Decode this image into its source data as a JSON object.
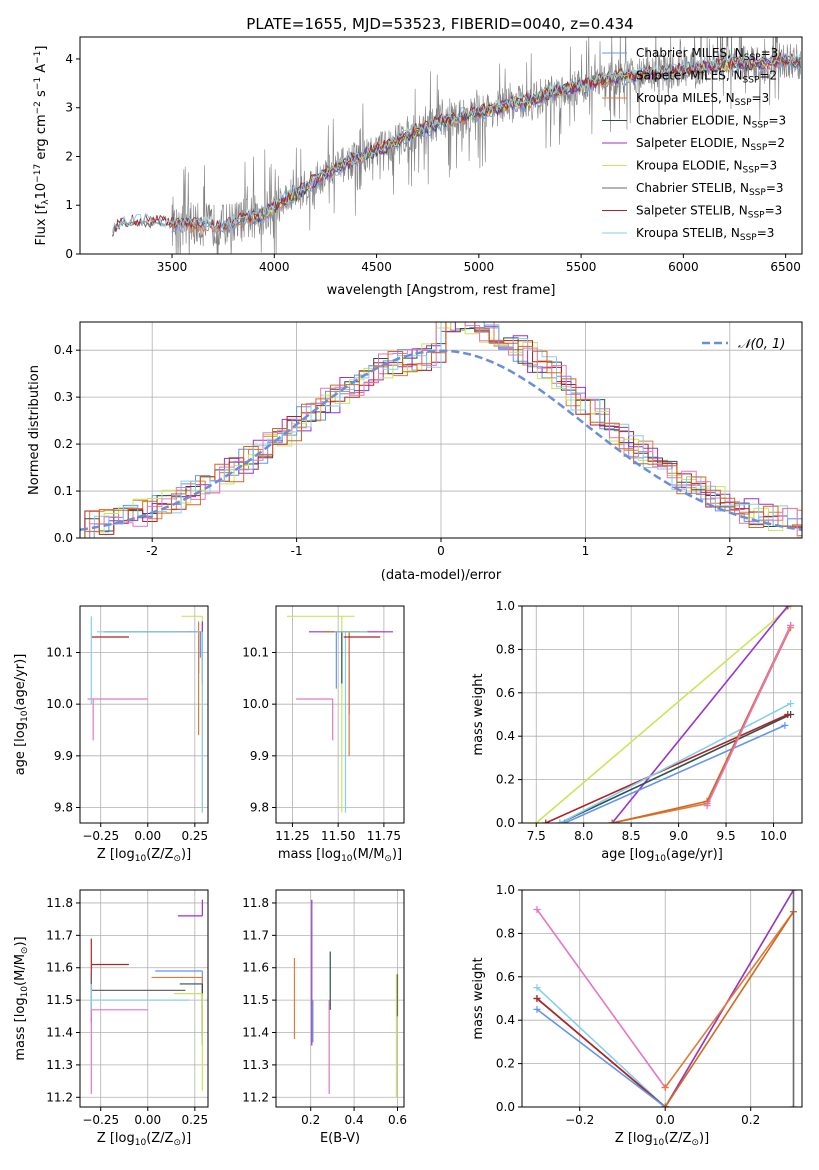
{
  "figure": {
    "title": "PLATE=1655, MJD=53523, FIBERID=0040, z=0.434"
  },
  "chart_data": [
    {
      "id": "spectrum",
      "type": "line",
      "xlabel": "wavelength [Angstrom, rest frame]",
      "ylabel": "Flux [f",
      "ylabel_sub": "λ",
      "ylabel_rest": "10",
      "ylabel_exp1": "−17",
      "ylabel_mid": " erg cm",
      "ylabel_exp2": "−2",
      "ylabel_mid2": " s",
      "ylabel_exp3": "−1",
      "ylabel_end": " A",
      "ylabel_exp4": "−1",
      "ylabel_close": "]",
      "xlim": [
        3050,
        6580
      ],
      "ylim": [
        0,
        4.45
      ],
      "xticks": [
        3500,
        4000,
        4500,
        5000,
        5500,
        6000,
        6500
      ],
      "yticks": [
        0,
        1,
        2,
        3,
        4
      ],
      "grid": false,
      "legend_position": "top-right",
      "data_x_range": [
        3210,
        6575
      ],
      "continuum": [
        [
          3210,
          0.45
        ],
        [
          3250,
          0.62
        ],
        [
          3350,
          0.65
        ],
        [
          3450,
          0.62
        ],
        [
          3550,
          0.6
        ],
        [
          3650,
          0.6
        ],
        [
          3750,
          0.58
        ],
        [
          3850,
          0.7
        ],
        [
          3950,
          0.82
        ],
        [
          4050,
          1.1
        ],
        [
          4150,
          1.35
        ],
        [
          4250,
          1.65
        ],
        [
          4350,
          1.85
        ],
        [
          4450,
          2.05
        ],
        [
          4550,
          2.2
        ],
        [
          4650,
          2.45
        ],
        [
          4750,
          2.6
        ],
        [
          4850,
          2.75
        ],
        [
          4950,
          2.85
        ],
        [
          5050,
          2.95
        ],
        [
          5150,
          3.05
        ],
        [
          5250,
          3.15
        ],
        [
          5350,
          3.3
        ],
        [
          5450,
          3.4
        ],
        [
          5550,
          3.5
        ],
        [
          5650,
          3.6
        ],
        [
          5750,
          3.65
        ],
        [
          5850,
          3.7
        ],
        [
          5950,
          3.75
        ],
        [
          6050,
          3.8
        ],
        [
          6150,
          3.85
        ],
        [
          6250,
          3.9
        ],
        [
          6350,
          3.9
        ],
        [
          6450,
          3.95
        ],
        [
          6575,
          3.95
        ]
      ],
      "series": [
        {
          "name": "Chabrier MILES, N",
          "sub": "SSP",
          "suffix": "=3",
          "color": "#6495ed"
        },
        {
          "name": "Salpeter MILES, N",
          "sub": "SSP",
          "suffix": "=2",
          "color": "#a9a9a9"
        },
        {
          "name": "Kroupa MILES, N",
          "sub": "SSP",
          "suffix": "=3",
          "color": "#e07b39"
        },
        {
          "name": "Chabrier ELODIE, N",
          "sub": "SSP",
          "suffix": "=3",
          "color": "#2f4f4f"
        },
        {
          "name": "Salpeter ELODIE, N",
          "sub": "SSP",
          "suffix": "=2",
          "color": "#9932cc"
        },
        {
          "name": "Kroupa ELODIE, N",
          "sub": "SSP",
          "suffix": "=3",
          "color": "#c8e65a"
        },
        {
          "name": "Chabrier STELIB, N",
          "sub": "SSP",
          "suffix": "=3",
          "color": "#696969"
        },
        {
          "name": "Salpeter STELIB, N",
          "sub": "SSP",
          "suffix": "=3",
          "color": "#b22222"
        },
        {
          "name": "Kroupa STELIB, N",
          "sub": "SSP",
          "suffix": "=3",
          "color": "#87ceeb"
        }
      ]
    },
    {
      "id": "residuals",
      "type": "histogram",
      "xlabel": "(data-model)/error",
      "ylabel": "Normed distribution",
      "xlim": [
        -2.5,
        2.5
      ],
      "ylim": [
        0,
        0.46
      ],
      "xticks": [
        -2,
        -1,
        0,
        1,
        2
      ],
      "yticks": [
        0.0,
        0.1,
        0.2,
        0.3,
        0.4
      ],
      "grid": true,
      "legend_position": "top-right",
      "legend_label": "𝒩(0, 1)",
      "gaussian_color": "#6a8fd8",
      "bin_width": 0.1,
      "colors": [
        "#6495ed",
        "#e07b39",
        "#2f4f4f",
        "#9932cc",
        "#c8e65a",
        "#b22222",
        "#87ceeb",
        "#e377c2",
        "#d2691e"
      ]
    },
    {
      "id": "age-vs-z",
      "type": "errorbar",
      "xlabel": "Z [log",
      "xlabel_sub": "10",
      "xlabel_rest": "(Z/Z",
      "xlabel_sub2": "⊙",
      "xlabel_end": ")]",
      "ylabel": "age  [log",
      "ylabel_sub": "10",
      "ylabel_rest": "(age/yr)]",
      "xlim": [
        -0.36,
        0.32
      ],
      "ylim": [
        9.77,
        10.19
      ],
      "xticks": [
        -0.25,
        0.0,
        0.25
      ],
      "xticklabels": [
        "−0.25",
        "0.00",
        "0.25"
      ],
      "yticks": [
        9.8,
        9.9,
        10.0,
        10.1
      ],
      "grid": true,
      "points": [
        {
          "x": 0.29,
          "y": 10.17,
          "xerr": [
            0.11,
            0.0
          ],
          "yerr": [
            0.38,
            0.0
          ],
          "color": "#c8e65a"
        },
        {
          "x": 0.29,
          "y": 10.14,
          "xerr": [
            0.08,
            0.0
          ],
          "yerr": [
            0.1,
            0.02
          ],
          "color": "#9932cc"
        },
        {
          "x": 0.27,
          "y": 10.14,
          "xerr": [
            0.5,
            0.0
          ],
          "yerr": [
            0.08,
            0.0
          ],
          "color": "#2f4f4f"
        },
        {
          "x": 0.27,
          "y": 10.14,
          "xerr": [
            0.1,
            0.02
          ],
          "yerr": [
            0.2,
            0.02
          ],
          "color": "#e07b39"
        },
        {
          "x": 0.29,
          "y": 10.14,
          "xerr": [
            0.56,
            0.0
          ],
          "yerr": [
            0.35,
            0.0
          ],
          "color": "#87ceeb"
        },
        {
          "x": -0.2,
          "y": 10.13,
          "xerr": [
            0.1,
            0.1
          ],
          "yerr": [
            0.0,
            0.0
          ],
          "color": "#b22222"
        },
        {
          "x": -0.29,
          "y": 10.01,
          "xerr": [
            0.03,
            0.29
          ],
          "yerr": [
            0.08,
            0.0
          ],
          "color": "#e377c2"
        },
        {
          "x": -0.3,
          "y": 10.1,
          "xerr": [
            0.0,
            0.0
          ],
          "yerr": [
            0.1,
            0.07
          ],
          "color": "#87ceeb"
        },
        {
          "x": 0.28,
          "y": 10.14,
          "xerr": [
            0.0,
            0.0
          ],
          "yerr": [
            0.05,
            0.0
          ],
          "color": "#6495ed"
        }
      ]
    },
    {
      "id": "age-vs-mass",
      "type": "errorbar",
      "xlabel": "mass [log",
      "xlabel_sub": "10",
      "xlabel_rest": "(M/M",
      "xlabel_sub2": "⊙",
      "xlabel_end": ")]",
      "xlim": [
        11.16,
        11.86
      ],
      "ylim": [
        9.77,
        10.19
      ],
      "xticks": [
        11.25,
        11.5,
        11.75
      ],
      "xticklabels": [
        "11.25",
        "11.50",
        "11.75"
      ],
      "yticks": [
        9.8,
        9.9,
        10.0,
        10.1
      ],
      "grid": true,
      "points": [
        {
          "x": 11.52,
          "y": 10.17,
          "xerr": [
            0.3,
            0.07
          ],
          "yerr": [
            0.38,
            0.0
          ],
          "color": "#c8e65a"
        },
        {
          "x": 11.56,
          "y": 10.14,
          "xerr": [
            0.22,
            0.24
          ],
          "yerr": [
            0.16,
            0.0
          ],
          "color": "#9932cc"
        },
        {
          "x": 11.52,
          "y": 10.14,
          "xerr": [
            0.1,
            0.1
          ],
          "yerr": [
            0.1,
            0.0
          ],
          "color": "#2f4f4f"
        },
        {
          "x": 11.56,
          "y": 10.14,
          "xerr": [
            0.14,
            0.06
          ],
          "yerr": [
            0.24,
            0.0
          ],
          "color": "#e07b39"
        },
        {
          "x": 11.54,
          "y": 10.14,
          "xerr": [
            0.06,
            0.12
          ],
          "yerr": [
            0.35,
            0.0
          ],
          "color": "#87ceeb"
        },
        {
          "x": 11.63,
          "y": 10.13,
          "xerr": [
            0.1,
            0.1
          ],
          "yerr": [
            0.0,
            0.0
          ],
          "color": "#b22222"
        },
        {
          "x": 11.47,
          "y": 10.01,
          "xerr": [
            0.2,
            0.0
          ],
          "yerr": [
            0.08,
            0.0
          ],
          "color": "#e377c2"
        },
        {
          "x": 11.49,
          "y": 10.14,
          "xerr": [
            0.0,
            0.0
          ],
          "yerr": [
            0.11,
            0.0
          ],
          "color": "#6495ed"
        }
      ]
    },
    {
      "id": "weight-vs-age",
      "type": "line",
      "xlabel": "age  [log",
      "xlabel_sub": "10",
      "xlabel_rest": "(age/yr)]",
      "ylabel": "mass weight",
      "xlim": [
        7.35,
        10.3
      ],
      "ylim": [
        0,
        1.0
      ],
      "xticks": [
        7.5,
        8.0,
        8.5,
        9.0,
        9.5,
        10.0
      ],
      "xticklabels": [
        "7.5",
        "8.0",
        "8.5",
        "9.0",
        "9.5",
        "10.0"
      ],
      "yticks": [
        0.0,
        0.2,
        0.4,
        0.6,
        0.8,
        1.0
      ],
      "grid": true,
      "series": [
        {
          "color": "#c8e65a",
          "x": [
            7.5,
            10.18
          ],
          "y": [
            0.0,
            1.0
          ]
        },
        {
          "color": "#9932cc",
          "x": [
            8.3,
            10.15
          ],
          "y": [
            0.0,
            1.0
          ]
        },
        {
          "color": "#2f4f4f",
          "x": [
            7.75,
            10.18
          ],
          "y": [
            0.0,
            0.5
          ]
        },
        {
          "color": "#b22222",
          "x": [
            7.6,
            10.15
          ],
          "y": [
            0.0,
            0.5
          ]
        },
        {
          "color": "#87ceeb",
          "x": [
            7.75,
            10.18
          ],
          "y": [
            0.0,
            0.55
          ]
        },
        {
          "color": "#6495ed",
          "x": [
            7.8,
            10.12
          ],
          "y": [
            0.0,
            0.45
          ]
        },
        {
          "color": "#e07b39",
          "x": [
            8.3,
            9.3,
            10.18
          ],
          "y": [
            0.0,
            0.09,
            0.9
          ]
        },
        {
          "color": "#d2691e",
          "x": [
            8.3,
            9.3,
            10.18
          ],
          "y": [
            0.0,
            0.1,
            0.91
          ]
        },
        {
          "color": "#e377c2",
          "x": [
            9.3,
            10.18
          ],
          "y": [
            0.08,
            0.91
          ]
        }
      ]
    },
    {
      "id": "mass-vs-z",
      "type": "errorbar",
      "xlabel": "Z [log",
      "xlabel_sub": "10",
      "xlabel_rest": "(Z/Z",
      "xlabel_sub2": "⊙",
      "xlabel_end": ")]",
      "ylabel": "mass [log",
      "ylabel_sub": "10",
      "ylabel_rest": "(M/M",
      "ylabel_sub2": "⊙",
      "ylabel_end": ")]",
      "xlim": [
        -0.36,
        0.32
      ],
      "ylim": [
        11.17,
        11.84
      ],
      "xticks": [
        -0.25,
        0.0,
        0.25
      ],
      "xticklabels": [
        "−0.25",
        "0.00",
        "0.25"
      ],
      "yticks": [
        11.2,
        11.3,
        11.4,
        11.5,
        11.6,
        11.7,
        11.8
      ],
      "grid": true,
      "points": [
        {
          "x": 0.29,
          "y": 11.76,
          "xerr": [
            0.13,
            0.0
          ],
          "yerr": [
            0.0,
            0.05
          ],
          "color": "#9932cc"
        },
        {
          "x": -0.3,
          "y": 11.61,
          "xerr": [
            0.0,
            0.2
          ],
          "yerr": [
            0.06,
            0.08
          ],
          "color": "#b22222"
        },
        {
          "x": 0.29,
          "y": 11.59,
          "xerr": [
            0.25,
            0.0
          ],
          "yerr": [
            0.2,
            0.0
          ],
          "color": "#6495ed"
        },
        {
          "x": 0.29,
          "y": 11.57,
          "xerr": [
            0.27,
            0.0
          ],
          "yerr": [
            0.15,
            0.0
          ],
          "color": "#e07b39"
        },
        {
          "x": 0.29,
          "y": 11.55,
          "xerr": [
            0.12,
            0.0
          ],
          "yerr": [
            0.19,
            0.0
          ],
          "color": "#2f4f4f"
        },
        {
          "x": -0.3,
          "y": 11.53,
          "xerr": [
            0.0,
            0.5
          ],
          "yerr": [
            0.1,
            0.05
          ],
          "color": "#696969"
        },
        {
          "x": 0.29,
          "y": 11.52,
          "xerr": [
            0.15,
            0.0
          ],
          "yerr": [
            0.3,
            0.0
          ],
          "color": "#c8e65a"
        },
        {
          "x": -0.3,
          "y": 11.5,
          "xerr": [
            0.0,
            0.52
          ],
          "yerr": [
            0.05,
            0.05
          ],
          "color": "#87ceeb"
        },
        {
          "x": -0.3,
          "y": 11.47,
          "xerr": [
            0.0,
            0.3
          ],
          "yerr": [
            0.26,
            0.0
          ],
          "color": "#e377c2"
        }
      ]
    },
    {
      "id": "mass-vs-ebv",
      "type": "errorbar",
      "xlabel": "E(B-V)",
      "xlim": [
        0.04,
        0.63
      ],
      "ylim": [
        11.17,
        11.84
      ],
      "xticks": [
        0.2,
        0.4,
        0.6
      ],
      "xticklabels": [
        "0.2",
        "0.4",
        "0.6"
      ],
      "yticks": [
        11.2,
        11.3,
        11.4,
        11.5,
        11.6,
        11.7,
        11.8
      ],
      "grid": true,
      "points": [
        {
          "x": 0.125,
          "y": 11.5,
          "xerr": [
            0,
            0
          ],
          "yerr": [
            0.12,
            0.13
          ],
          "color": "#e07b39"
        },
        {
          "x": 0.205,
          "y": 11.58,
          "xerr": [
            0,
            0
          ],
          "yerr": [
            0.22,
            0.23
          ],
          "color": "#9932cc"
        },
        {
          "x": 0.21,
          "y": 11.5,
          "xerr": [
            0,
            0
          ],
          "yerr": [
            0.13,
            0.0
          ],
          "color": "#6495ed"
        },
        {
          "x": 0.285,
          "y": 11.5,
          "xerr": [
            0,
            0
          ],
          "yerr": [
            0.29,
            0.0
          ],
          "color": "#e377c2"
        },
        {
          "x": 0.29,
          "y": 11.55,
          "xerr": [
            0,
            0
          ],
          "yerr": [
            0.08,
            0.1
          ],
          "color": "#2f4f4f"
        },
        {
          "x": 0.595,
          "y": 11.45,
          "xerr": [
            0,
            0
          ],
          "yerr": [
            0.25,
            0.13
          ],
          "color": "#c8e65a"
        },
        {
          "x": 0.6,
          "y": 11.5,
          "xerr": [
            0,
            0
          ],
          "yerr": [
            0.05,
            0.08
          ],
          "color": "#696969"
        }
      ]
    },
    {
      "id": "weight-vs-z",
      "type": "line",
      "xlabel": "Z [log",
      "xlabel_sub": "10",
      "xlabel_rest": "(Z/Z",
      "xlabel_sub2": "⊙",
      "xlabel_end": ")]",
      "ylabel": "mass weight",
      "xlim": [
        -0.335,
        0.32
      ],
      "ylim": [
        0,
        1.0
      ],
      "xticks": [
        -0.2,
        0.0,
        0.2
      ],
      "xticklabels": [
        "−0.2",
        "0.0",
        "0.2"
      ],
      "yticks": [
        0.0,
        0.2,
        0.4,
        0.6,
        0.8,
        1.0
      ],
      "grid": true,
      "series": [
        {
          "color": "#e377c2",
          "x": [
            -0.3,
            0.0
          ],
          "y": [
            0.91,
            0.09
          ]
        },
        {
          "color": "#87ceeb",
          "x": [
            -0.3,
            0.0
          ],
          "y": [
            0.55,
            0.0
          ]
        },
        {
          "color": "#2f4f4f",
          "x": [
            -0.3,
            0.0
          ],
          "y": [
            0.5,
            0.0
          ]
        },
        {
          "color": "#b22222",
          "x": [
            -0.3,
            0.0
          ],
          "y": [
            0.5,
            0.0
          ]
        },
        {
          "color": "#6495ed",
          "x": [
            -0.3,
            0.0
          ],
          "y": [
            0.45,
            0.0
          ]
        },
        {
          "color": "#c8e65a",
          "x": [
            0.0,
            0.3
          ],
          "y": [
            0.0,
            1.0
          ]
        },
        {
          "color": "#9932cc",
          "x": [
            0.0,
            0.3
          ],
          "y": [
            0.0,
            1.0
          ]
        },
        {
          "color": "#e07b39",
          "x": [
            0.0,
            0.3
          ],
          "y": [
            0.09,
            0.9
          ]
        },
        {
          "color": "#d2691e",
          "x": [
            0.0,
            0.3
          ],
          "y": [
            0.0,
            0.9
          ]
        },
        {
          "color": "#696969",
          "x": [
            0.3,
            0.3
          ],
          "y": [
            0.0,
            1.0
          ]
        }
      ]
    }
  ]
}
